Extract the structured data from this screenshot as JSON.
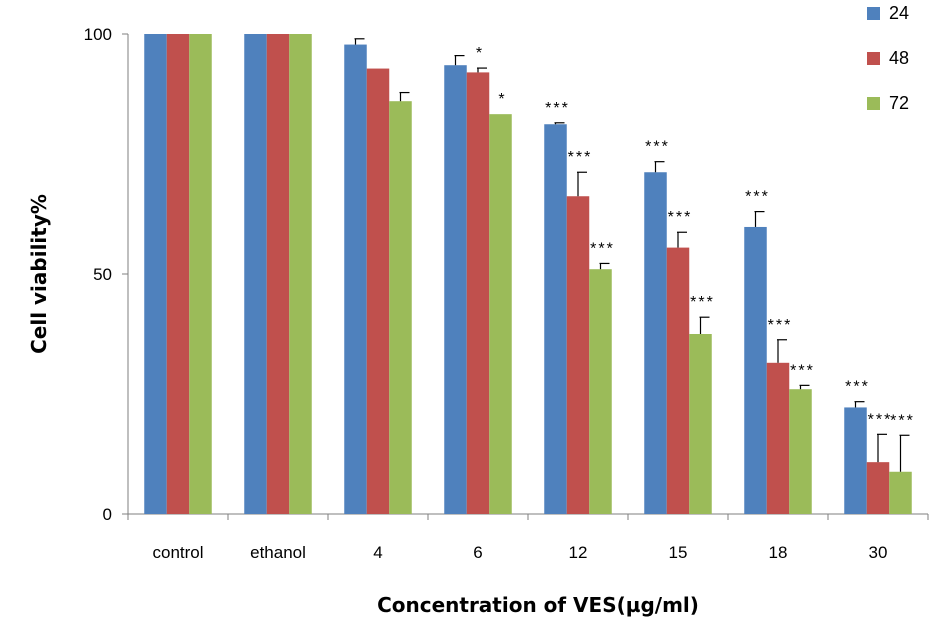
{
  "chart_data": {
    "type": "bar",
    "xlabel": "Concentration of VES(µg/ml)",
    "ylabel": "Cell viability%",
    "ylim": [
      0,
      100
    ],
    "yticks": [
      0,
      50,
      100
    ],
    "categories": [
      "control",
      "ethanol",
      "4",
      "6",
      "12",
      "15",
      "18",
      "30"
    ],
    "series": [
      {
        "name": "24",
        "color": "#4F81BD",
        "values": [
          100,
          100,
          97.8,
          93.5,
          81.2,
          71.2,
          59.8,
          22.2
        ],
        "errors": [
          0,
          0,
          1.2,
          2.0,
          0.3,
          2.2,
          3.2,
          1.2
        ],
        "labels": [
          "",
          "",
          "",
          "",
          "***",
          "***",
          "***",
          "***"
        ]
      },
      {
        "name": "48",
        "color": "#C0504D",
        "values": [
          100,
          100,
          92.8,
          92.0,
          66.2,
          55.5,
          31.5,
          10.8
        ],
        "errors": [
          0,
          0,
          0,
          0.9,
          5.0,
          3.2,
          4.8,
          5.8
        ],
        "labels": [
          "",
          "",
          "",
          "*",
          "***",
          "***",
          "***",
          "***"
        ]
      },
      {
        "name": "72",
        "color": "#9BBB59",
        "values": [
          100,
          100,
          86.0,
          83.3,
          51.0,
          37.5,
          26.0,
          8.8
        ],
        "errors": [
          0,
          0,
          1.8,
          0,
          1.2,
          3.5,
          0.8,
          7.6
        ],
        "labels": [
          "",
          "",
          "",
          "*",
          "***",
          "***",
          "***",
          "***"
        ]
      }
    ],
    "legend": "top-right",
    "grid": false
  }
}
